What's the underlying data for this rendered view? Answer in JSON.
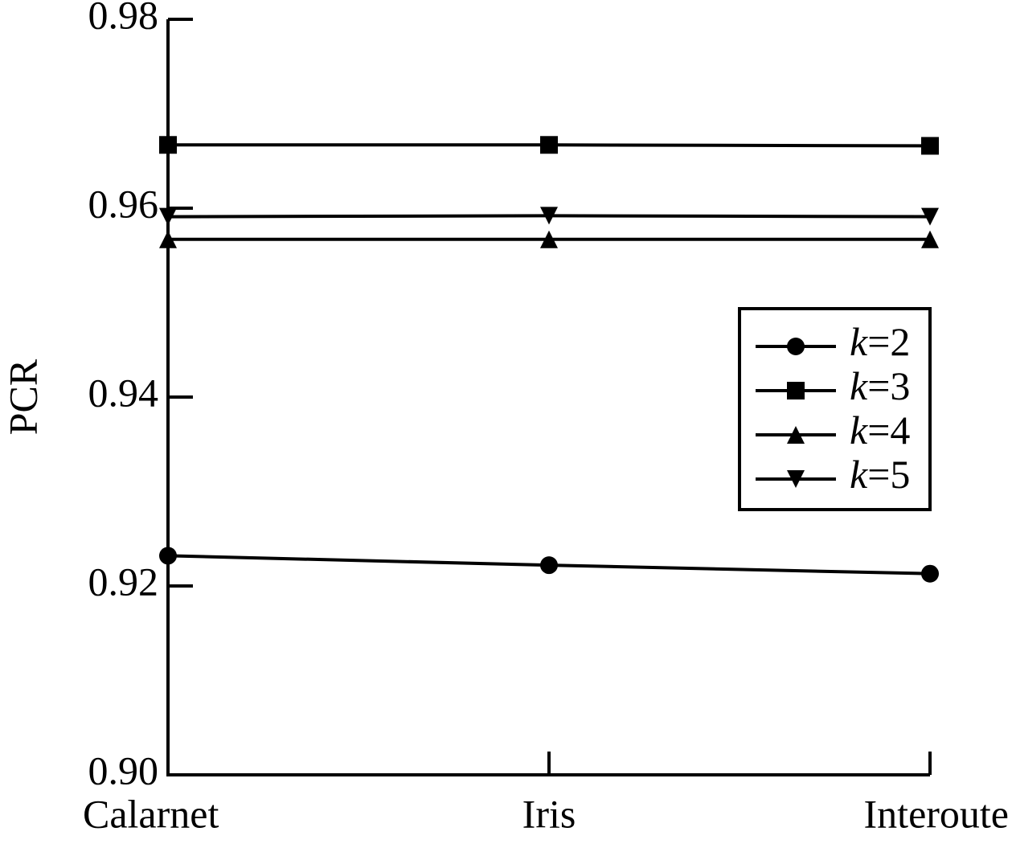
{
  "chart_data": {
    "type": "line",
    "y_label": "PCR",
    "categories": [
      "Calarnet",
      "Iris",
      "Interoute"
    ],
    "series": [
      {
        "name": "k=2",
        "color": "#000000",
        "marker": "circle",
        "values": [
          0.9232,
          0.9222,
          0.9213
        ]
      },
      {
        "name": "k=3",
        "color": "#000000",
        "marker": "square",
        "values": [
          0.9667,
          0.9667,
          0.9666
        ]
      },
      {
        "name": "k=4",
        "color": "#000000",
        "marker": "triangle-up",
        "values": [
          0.9567,
          0.9567,
          0.9567
        ]
      },
      {
        "name": "k=5",
        "color": "#000000",
        "marker": "triangle-down",
        "values": [
          0.9591,
          0.9592,
          0.9591
        ]
      }
    ],
    "ylim": [
      0.9,
      0.98
    ],
    "yticks": [
      {
        "value": 0.9,
        "label": "0.90"
      },
      0.92,
      0.94,
      0.96,
      0.98
    ],
    "legend": "right"
  }
}
